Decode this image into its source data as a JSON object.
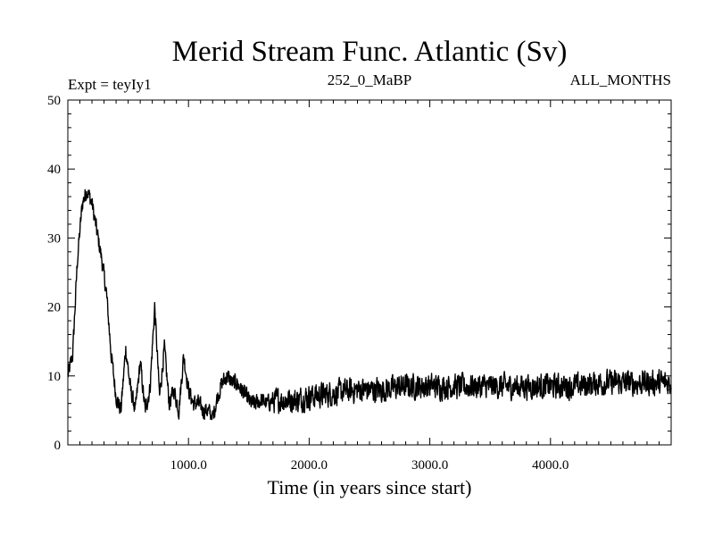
{
  "chart_data": {
    "type": "line",
    "title": "Merid Stream Func. Atlantic (Sv)",
    "subtitle_left": "Expt = teyIy1",
    "subtitle_center": "252_0_MaBP",
    "subtitle_right": "ALL_MONTHS",
    "xlabel": "Time (in years since start)",
    "ylabel": "",
    "xlim": [
      0,
      5000
    ],
    "ylim": [
      0,
      50
    ],
    "x_ticks": [
      1000,
      2000,
      3000,
      4000
    ],
    "x_tick_labels": [
      "1000.0",
      "2000.0",
      "3000.0",
      "4000.0"
    ],
    "y_ticks": [
      0,
      10,
      20,
      30,
      40,
      50
    ],
    "y_tick_labels": [
      "0",
      "10",
      "20",
      "30",
      "40",
      "50"
    ],
    "grid": false,
    "series": [
      {
        "name": "Merid Stream Func. Atlantic",
        "color": "#000000",
        "x": [
          0,
          40,
          80,
          120,
          160,
          200,
          240,
          280,
          320,
          360,
          400,
          440,
          480,
          520,
          560,
          600,
          640,
          680,
          720,
          760,
          800,
          840,
          880,
          920,
          960,
          1000,
          1040,
          1080,
          1120,
          1160,
          1200,
          1240,
          1280,
          1320,
          1360,
          1400,
          1440,
          1480,
          1520,
          1560,
          1600,
          1650,
          1700,
          1800,
          1900,
          2000,
          2200,
          2400,
          2600,
          2800,
          3000,
          3200,
          3400,
          3600,
          3800,
          4000,
          4200,
          4400,
          4600,
          4800,
          5000
        ],
        "y": [
          10,
          13,
          27,
          35,
          37,
          35,
          31,
          27,
          22,
          13,
          7,
          5,
          14,
          8,
          5,
          12,
          5,
          8,
          20,
          7,
          14,
          6,
          8,
          5,
          13,
          8,
          6,
          6,
          5,
          5,
          4,
          7,
          9,
          10,
          9,
          9,
          8,
          7,
          6,
          6,
          6.5,
          6,
          6.5,
          6.5,
          6.5,
          7,
          7.5,
          8,
          8,
          8.5,
          8.5,
          8.5,
          8.5,
          8.5,
          8.5,
          8.5,
          8.5,
          9,
          9,
          9,
          9
        ]
      }
    ]
  }
}
